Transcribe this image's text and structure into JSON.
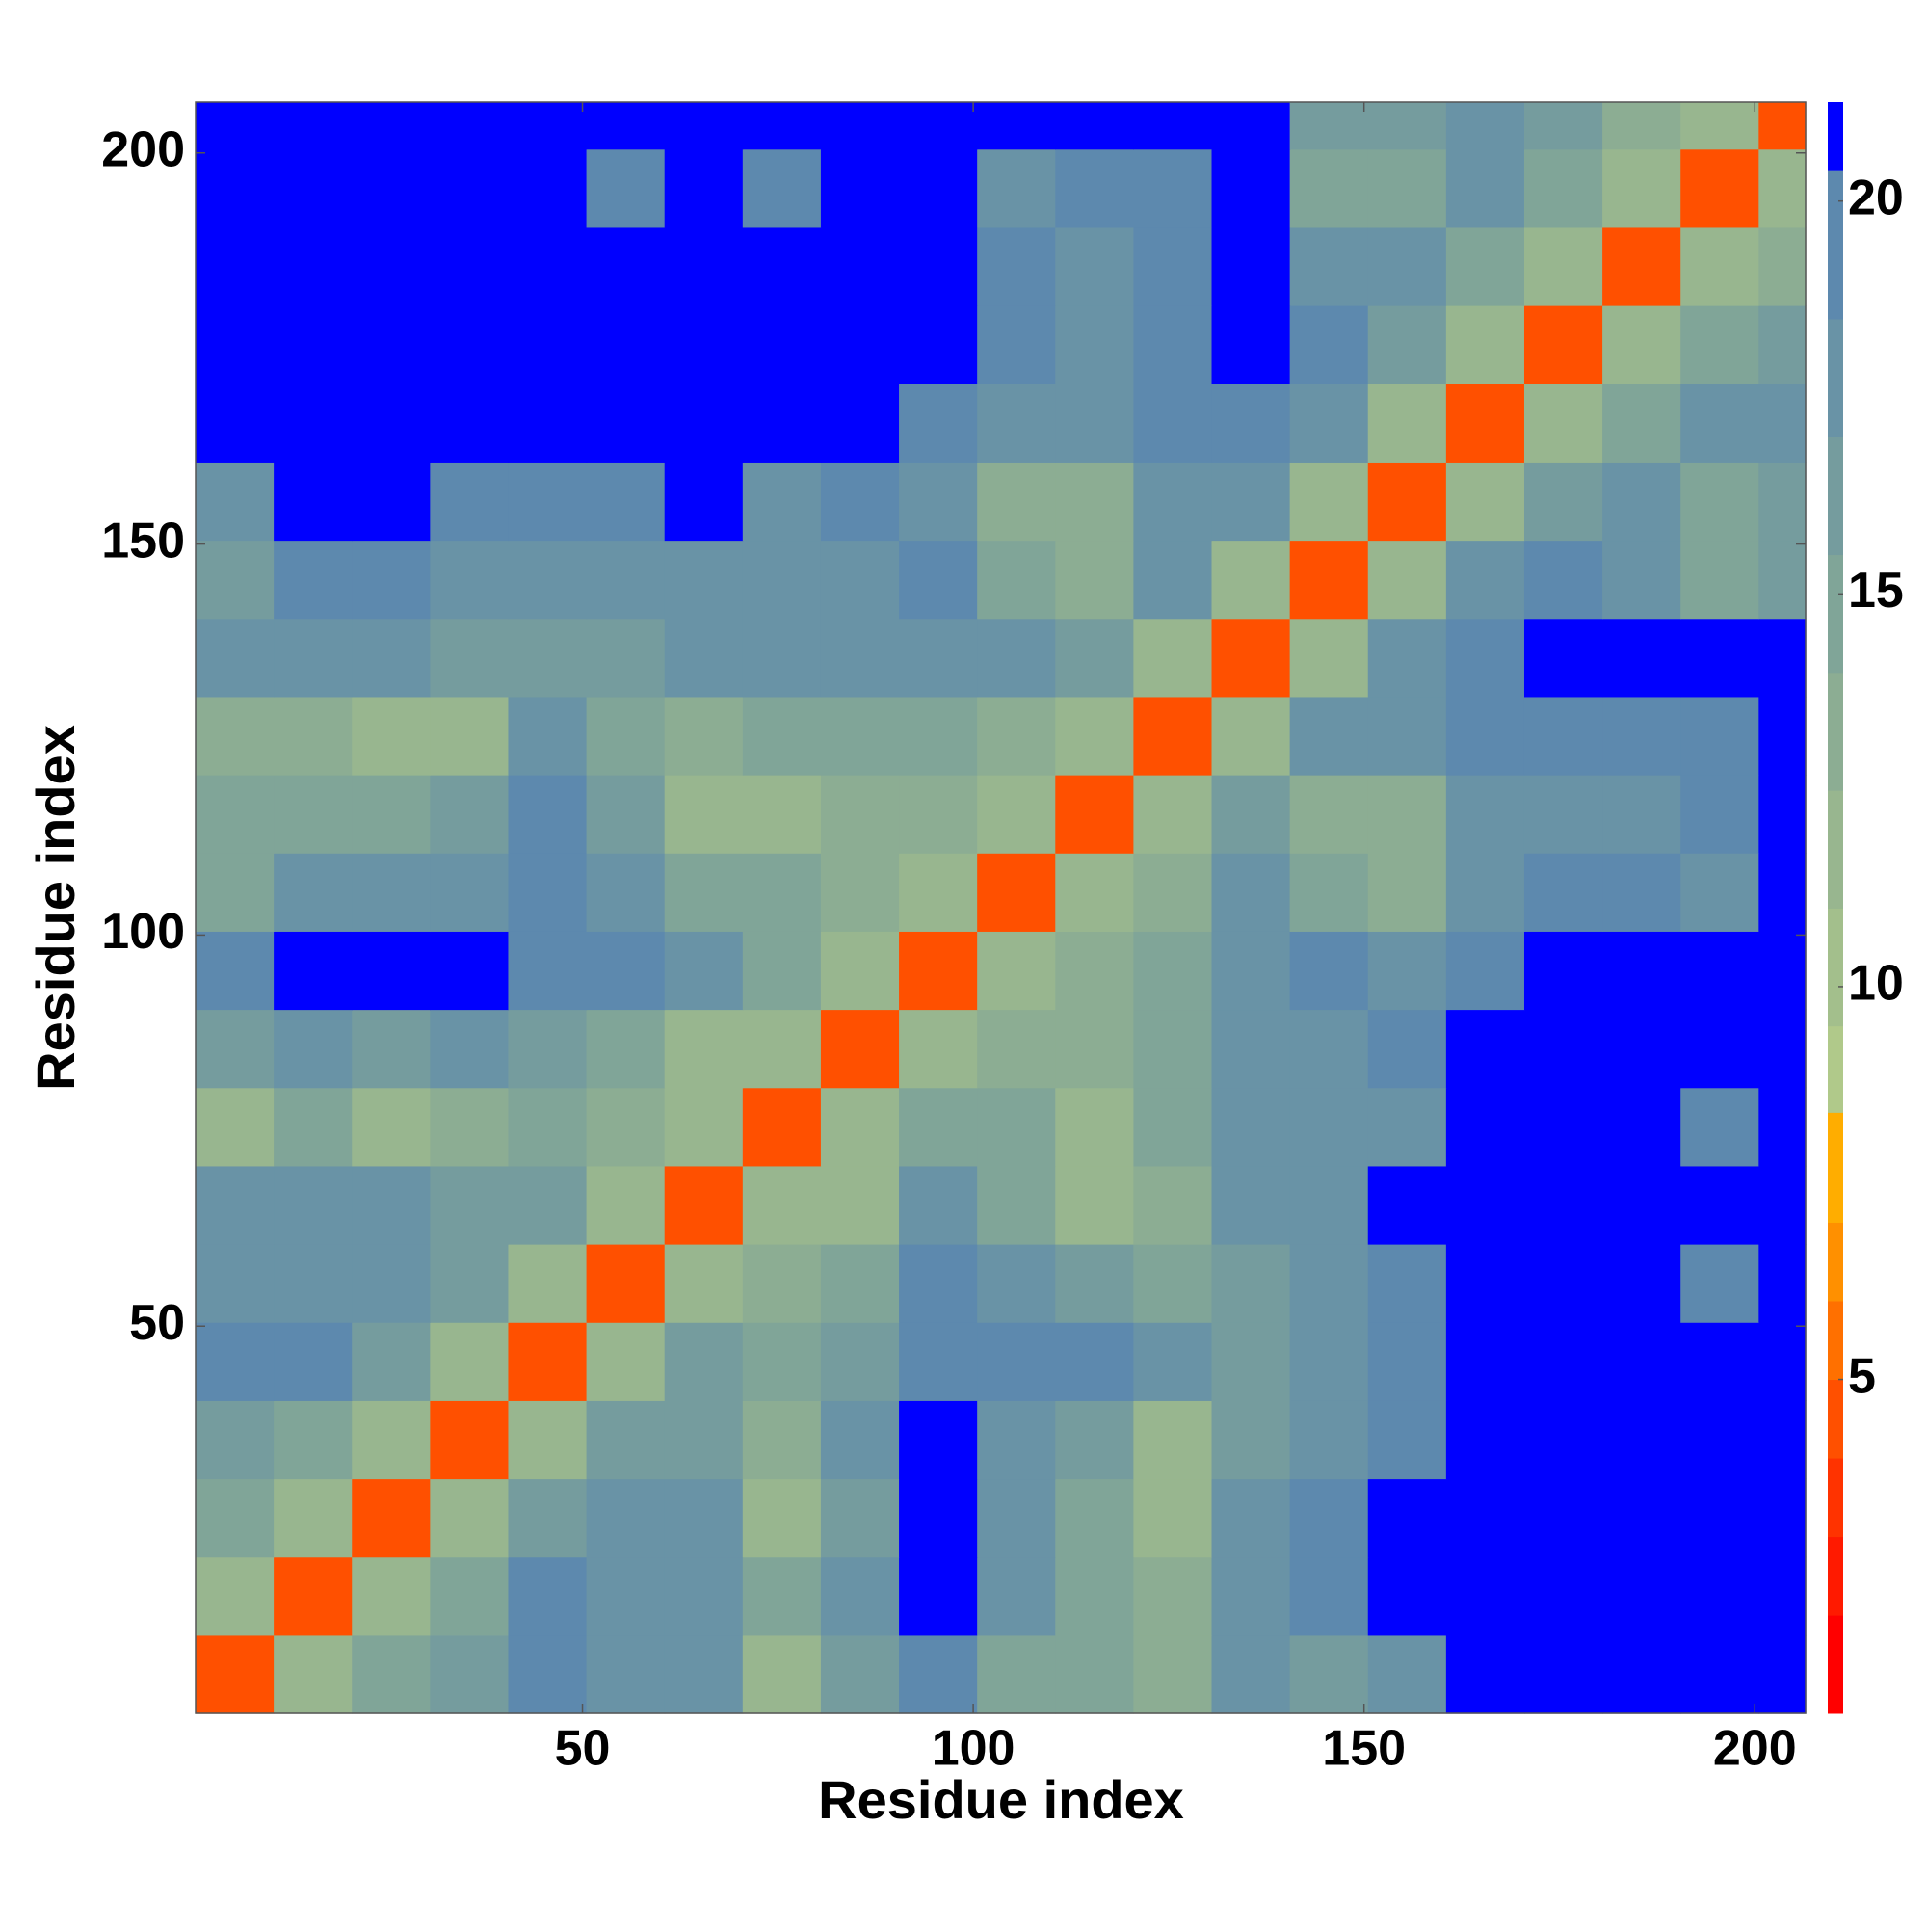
{
  "chart_data": {
    "type": "heatmap",
    "xlabel": "Residue index",
    "ylabel": "Residue index",
    "bins": [
      0.5,
      10.5,
      20.5,
      30.5,
      40.5,
      50.5,
      60.5,
      70.5,
      80.5,
      90.5,
      100.5,
      110.5,
      120.5,
      130.5,
      140.5,
      150.5,
      160.5,
      170.5,
      180.5,
      190.5,
      200.5,
      206.5
    ],
    "values": [
      [
        4,
        11,
        14,
        16,
        19,
        18,
        17,
        12,
        16,
        20,
        15,
        14,
        13,
        18,
        16,
        17,
        21,
        21,
        21,
        21,
        21
      ],
      [
        11,
        4,
        11,
        14,
        19,
        18,
        17,
        14,
        17,
        21,
        17,
        15,
        13,
        18,
        20,
        21,
        21,
        21,
        21,
        21,
        21
      ],
      [
        14,
        11,
        4,
        11,
        16,
        17,
        17,
        12,
        16,
        21,
        17,
        15,
        12,
        17,
        19,
        21,
        21,
        21,
        21,
        21,
        21
      ],
      [
        16,
        14,
        11,
        4,
        12,
        16,
        16,
        13,
        17,
        21,
        18,
        16,
        12,
        16,
        18,
        19,
        21,
        21,
        21,
        21,
        21
      ],
      [
        19,
        19,
        16,
        12,
        4,
        12,
        16,
        15,
        16,
        20,
        20,
        19,
        17,
        16,
        18,
        19,
        21,
        21,
        21,
        21,
        21
      ],
      [
        18,
        18,
        17,
        16,
        12,
        4,
        12,
        13,
        15,
        19,
        18,
        16,
        15,
        16,
        17,
        19,
        21,
        21,
        21,
        19,
        21
      ],
      [
        17,
        17,
        17,
        16,
        16,
        12,
        4,
        11,
        12,
        18,
        14,
        12,
        13,
        18,
        18,
        21,
        21,
        21,
        21,
        21,
        21
      ],
      [
        12,
        14,
        12,
        13,
        15,
        13,
        11,
        4,
        11,
        14,
        14,
        12,
        14,
        18,
        18,
        18,
        21,
        21,
        21,
        19,
        21
      ],
      [
        16,
        17,
        16,
        17,
        16,
        15,
        12,
        11,
        4,
        12,
        13,
        13,
        15,
        17,
        18,
        19,
        21,
        21,
        21,
        21,
        21
      ],
      [
        20,
        21,
        21,
        21,
        20,
        19,
        18,
        14,
        12,
        4,
        11,
        13,
        15,
        18,
        19,
        18,
        19,
        21,
        21,
        21,
        21
      ],
      [
        15,
        17,
        17,
        18,
        20,
        18,
        14,
        14,
        13,
        11,
        4,
        11,
        13,
        17,
        15,
        13,
        17,
        19,
        19,
        18,
        21
      ],
      [
        14,
        15,
        15,
        16,
        19,
        16,
        12,
        12,
        13,
        13,
        11,
        4,
        11,
        16,
        13,
        13,
        17,
        18,
        18,
        19,
        21
      ],
      [
        13,
        13,
        12,
        12,
        17,
        15,
        13,
        14,
        15,
        15,
        13,
        11,
        4,
        12,
        17,
        18,
        19,
        19,
        19,
        19,
        21
      ],
      [
        18,
        18,
        17,
        16,
        16,
        16,
        18,
        18,
        17,
        18,
        17,
        16,
        12,
        4,
        12,
        17,
        19,
        21,
        21,
        21,
        21
      ],
      [
        16,
        20,
        19,
        18,
        18,
        17,
        18,
        18,
        18,
        19,
        15,
        13,
        17,
        12,
        4,
        12,
        17,
        19,
        18,
        15,
        16
      ],
      [
        17,
        21,
        21,
        19,
        19,
        19,
        21,
        18,
        19,
        18,
        13,
        13,
        18,
        17,
        12,
        4,
        12,
        16,
        17,
        15,
        16
      ],
      [
        21,
        21,
        21,
        21,
        21,
        21,
        21,
        21,
        21,
        19,
        17,
        17,
        19,
        19,
        17,
        12,
        4,
        11,
        15,
        17,
        18
      ],
      [
        21,
        21,
        21,
        21,
        21,
        21,
        21,
        21,
        21,
        21,
        19,
        18,
        19,
        21,
        19,
        16,
        11,
        4,
        11,
        14,
        16
      ],
      [
        21,
        21,
        21,
        21,
        21,
        21,
        21,
        21,
        21,
        21,
        19,
        18,
        19,
        21,
        18,
        17,
        15,
        11,
        4,
        11,
        13
      ],
      [
        21,
        21,
        21,
        21,
        21,
        19,
        21,
        19,
        21,
        21,
        18,
        19,
        19,
        21,
        15,
        15,
        17,
        14,
        11,
        4,
        11
      ],
      [
        21,
        21,
        21,
        21,
        21,
        21,
        21,
        21,
        21,
        21,
        21,
        21,
        21,
        21,
        16,
        16,
        18,
        16,
        13,
        11,
        4
      ]
    ],
    "xlim": [
      0.5,
      206.5
    ],
    "ylim": [
      0.5,
      206.5
    ],
    "xticks": [
      50,
      100,
      150,
      200
    ],
    "yticks": [
      50,
      100,
      150,
      200
    ],
    "colorbar": {
      "levels": [
        0.75,
        2,
        3,
        4,
        5,
        6,
        7,
        8.4,
        9.5,
        11,
        12.5,
        14,
        15.5,
        17,
        18.5,
        20.4,
        21.26
      ],
      "colors": [
        "#ff0000",
        "#ff1a00",
        "#ff3300",
        "#ff5000",
        "#ff7000",
        "#ff9000",
        "#ffad00",
        "#b0c98a",
        "#a3bf8c",
        "#98b68f",
        "#8cad93",
        "#80a598",
        "#759c9e",
        "#6993a6",
        "#5d89ae",
        "#0000ff"
      ],
      "ticks": [
        5,
        10,
        15,
        20
      ]
    }
  }
}
